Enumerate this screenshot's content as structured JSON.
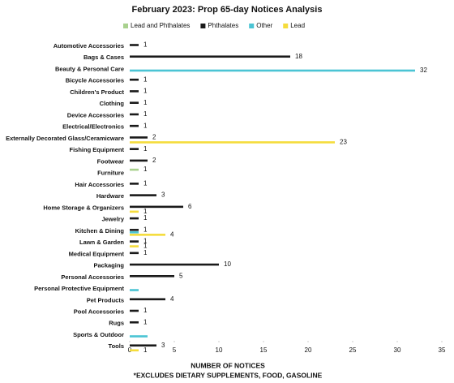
{
  "chart_data": {
    "type": "bar",
    "orientation": "horizontal",
    "title": "February 2023: Prop 65-day Notices Analysis",
    "x_label": "NUMBER OF NOTICES",
    "footnote": "*EXCLUDES DIETARY SUPPLEMENTS, FOOD, GASOLINE",
    "categories": [
      "Automotive Accessories",
      "Bags & Cases",
      "Beauty & Personal Care",
      "Bicycle Accessories",
      "Children's Product",
      "Clothing",
      "Device Accessories",
      "Electrical/Electronics",
      "Externally Decorated Glass/Ceramicware",
      "Fishing Equipment",
      "Footwear",
      "Furniture",
      "Hair Accessories",
      "Hardware",
      "Home Storage & Organizers",
      "Jewelry",
      "Kitchen & Dining",
      "Lawn & Garden",
      "Medical Equipment",
      "Packaging",
      "Personal Accessories",
      "Personal Protective Equipment",
      "Pet Products",
      "Pool Accessories",
      "Rugs",
      "Sports & Outdoor",
      "Tools"
    ],
    "series": [
      {
        "name": "Lead and Phthalates",
        "color": "#a9d18e",
        "values": [
          null,
          null,
          null,
          null,
          null,
          null,
          null,
          null,
          null,
          null,
          null,
          1,
          null,
          null,
          null,
          null,
          null,
          null,
          null,
          null,
          null,
          null,
          null,
          null,
          null,
          null,
          null
        ]
      },
      {
        "name": "Phthalates",
        "color": "#1a1a1a",
        "values": [
          1,
          18,
          null,
          1,
          1,
          1,
          1,
          1,
          2,
          1,
          2,
          null,
          1,
          3,
          6,
          1,
          1,
          1,
          1,
          10,
          5,
          null,
          4,
          1,
          1,
          null,
          3
        ]
      },
      {
        "name": "Other",
        "color": "#4bc4d4",
        "values": [
          null,
          null,
          32,
          null,
          null,
          null,
          null,
          null,
          null,
          null,
          null,
          null,
          null,
          null,
          null,
          null,
          1,
          null,
          null,
          null,
          null,
          1,
          null,
          null,
          null,
          2,
          null
        ],
        "value_labels": [
          null,
          null,
          "32",
          null,
          null,
          null,
          null,
          null,
          null,
          null,
          null,
          null,
          null,
          null,
          null,
          null,
          null,
          null,
          null,
          null,
          null,
          null,
          null,
          null,
          null,
          null,
          null
        ]
      },
      {
        "name": "Lead",
        "color": "#f5dc3c",
        "values": [
          null,
          null,
          null,
          null,
          null,
          null,
          null,
          null,
          23,
          null,
          null,
          null,
          null,
          null,
          1,
          null,
          4,
          1,
          null,
          null,
          null,
          null,
          null,
          null,
          null,
          null,
          1
        ]
      }
    ],
    "xlim": [
      0,
      35
    ],
    "xticks": [
      0,
      5,
      10,
      15,
      20,
      25,
      30,
      35
    ]
  }
}
